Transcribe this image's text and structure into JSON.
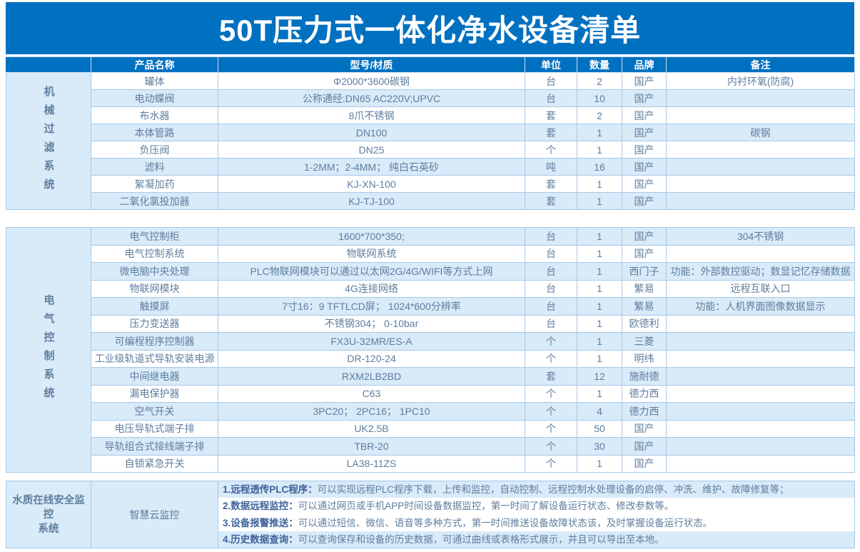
{
  "title": "50T压力式一体化净水设备清单",
  "colors": {
    "brand_blue": "#0070c0",
    "light_blue_row": "#d9eaf8",
    "grid_border": "#a6c9e8",
    "body_text": "#5f7e9e",
    "header_text": "#ffffff"
  },
  "columns": [
    "产品名称",
    "型号/材质",
    "单位",
    "数量",
    "品牌",
    "备注"
  ],
  "sections": [
    {
      "label": "机械过滤系统",
      "rows": [
        [
          "罐体",
          "Φ2000*3600碳钢",
          "台",
          "2",
          "国产",
          "内衬环氧(防腐)"
        ],
        [
          "电动蝶阀",
          "公称通经:DN65 AC220V;UPVC",
          "台",
          "10",
          "国产",
          ""
        ],
        [
          "布水器",
          "8爪不锈钢",
          "套",
          "2",
          "国产",
          ""
        ],
        [
          "本体管路",
          "DN100",
          "套",
          "1",
          "国产",
          "碳钢"
        ],
        [
          "负压阀",
          "DN25",
          "个",
          "1",
          "国产",
          ""
        ],
        [
          "滤料",
          "1-2MM；2-4MM； 纯白石英砂",
          "吨",
          "16",
          "国产",
          ""
        ],
        [
          "絮凝加药",
          "KJ-XN-100",
          "套",
          "1",
          "国产",
          ""
        ],
        [
          "二氧化氯投加器",
          "KJ-TJ-100",
          "套",
          "1",
          "国产",
          ""
        ]
      ]
    },
    {
      "label": "电气控制系统",
      "rows": [
        [
          "电气控制柜",
          "1600*700*350;",
          "台",
          "1",
          "国产",
          "304不锈钢"
        ],
        [
          "电气控制系统",
          "物联网系统",
          "台",
          "1",
          "国产",
          ""
        ],
        [
          "微电脑中央处理",
          "PLC物联网模块可以通过以太网2G/4G/WIFI等方式上网",
          "台",
          "1",
          "西门子",
          "功能：外部数控驱动；数显记忆存储数据"
        ],
        [
          "物联网模块",
          "4G连接网络",
          "台",
          "1",
          "繁易",
          "远程互联入口"
        ],
        [
          "触摸屏",
          "7寸16：9 TFTLCD屏； 1024*600分辨率",
          "台",
          "1",
          "繁易",
          "功能：人机界面图像数据显示"
        ],
        [
          "压力变送器",
          "不锈钢304； 0-10bar",
          "台",
          "1",
          "欧德利",
          ""
        ],
        [
          "可编程程序控制器",
          "FX3U-32MR/ES-A",
          "个",
          "1",
          "三菱",
          ""
        ],
        [
          "工业级轨道式导轨安装电源",
          "DR-120-24",
          "个",
          "1",
          "明纬",
          ""
        ],
        [
          "中间继电器",
          "RXM2LB2BD",
          "套",
          "12",
          "施耐德",
          ""
        ],
        [
          "漏电保护器",
          "C63",
          "个",
          "1",
          "德力西",
          ""
        ],
        [
          "空气开关",
          "3PC20； 2PC16； 1PC10",
          "个",
          "4",
          "德力西",
          ""
        ],
        [
          "电压导轨式端子排",
          "UK2.5B",
          "个",
          "50",
          "国产",
          ""
        ],
        [
          "导轨组合式接线端子排",
          "TBR-20",
          "个",
          "30",
          "国产",
          ""
        ],
        [
          "自锁紧急开关",
          "LA38-11ZS",
          "个",
          "1",
          "国产",
          ""
        ]
      ]
    }
  ],
  "monitoring_section": {
    "label_line1": "水质在线安全监控",
    "label_line2": "系统",
    "product": "智慧云监控",
    "notes": [
      {
        "lead": "1.远程透传PLC程序：",
        "text": "可以实现远程PLC程序下载，上传和监控，自动控制、远程控制水处理设备的启停、冲洗、维护、故障修复等；"
      },
      {
        "lead": "2.数据远程监控：",
        "text": "可以通过网页或手机APP时间设备数据监控，第一时间了解设备运行状态、修改参数等。"
      },
      {
        "lead": "3.设备报警推送：",
        "text": "可以通过短信、微信、语音等多种方式，第一时间推送设备故障状态该，及时掌握设备运行状态。"
      },
      {
        "lead": "4.历史数据查询：",
        "text": "可以查询保存和设备的历史数据，可通过曲线或表格形式展示，并且可以导出至本地。"
      }
    ]
  }
}
